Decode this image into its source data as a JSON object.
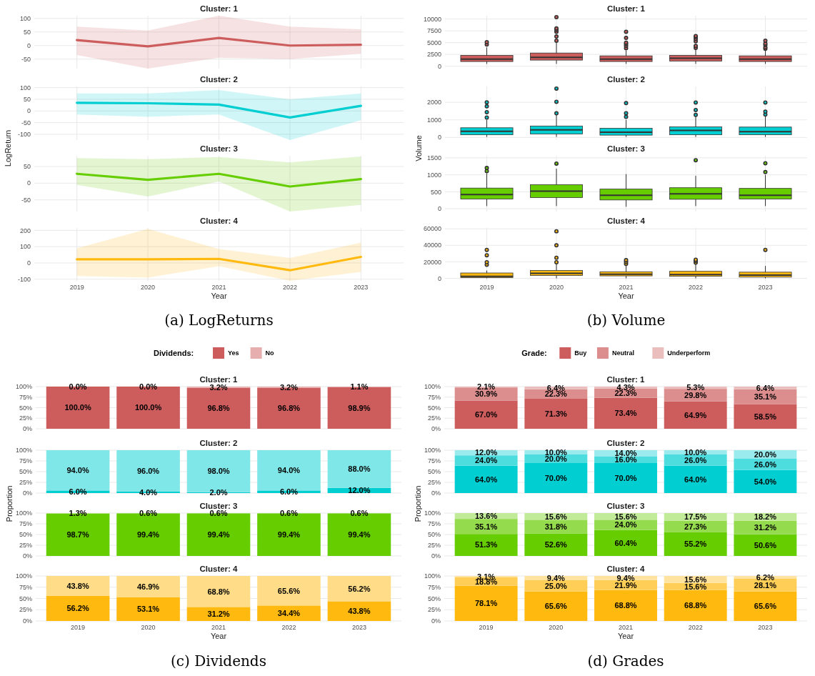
{
  "chart_data": [
    {
      "type": "line",
      "title": "Cluster: 1",
      "categories": [
        "2019",
        "2020",
        "2021",
        "2022",
        "2023"
      ],
      "series": [
        {
          "color": "#cd5c5c",
          "values": [
            20,
            -3,
            28,
            0,
            3
          ],
          "lower": [
            -35,
            -85,
            -45,
            -50,
            -30
          ],
          "upper": [
            70,
            55,
            110,
            70,
            60
          ]
        }
      ],
      "ylim": [
        -85,
        110
      ],
      "yticks": [
        -50,
        0,
        50,
        100
      ],
      "grid": true,
      "tick_labels": "y"
    },
    {
      "type": "line",
      "title": "Cluster: 2",
      "ylabel": "LogReturn",
      "categories": [
        "2019",
        "2020",
        "2021",
        "2022",
        "2023"
      ],
      "series": [
        {
          "color": "#00ced1",
          "values": [
            35,
            33,
            27,
            -28,
            22
          ],
          "lower": [
            -15,
            -25,
            -15,
            -125,
            -40
          ],
          "upper": [
            75,
            75,
            90,
            50,
            75
          ]
        }
      ],
      "ylim": [
        -125,
        105
      ],
      "yticks": [
        -100,
        -50,
        0,
        50,
        100
      ],
      "grid": true,
      "tick_labels": "y"
    },
    {
      "type": "line",
      "title": "Cluster: 3",
      "categories": [
        "2019",
        "2020",
        "2021",
        "2022",
        "2023"
      ],
      "series": [
        {
          "color": "#66cd00",
          "values": [
            28,
            10,
            28,
            -10,
            12
          ],
          "lower": [
            -5,
            -40,
            5,
            -85,
            -65
          ],
          "upper": [
            75,
            72,
            78,
            62,
            80
          ]
        }
      ],
      "ylim": [
        -85,
        82
      ],
      "yticks": [
        -50,
        0,
        50
      ],
      "grid": true,
      "tick_labels": "y"
    },
    {
      "type": "line",
      "title": "Cluster: 4",
      "xlabel": "Year",
      "categories": [
        "2019",
        "2020",
        "2021",
        "2022",
        "2023"
      ],
      "series": [
        {
          "color": "#ffb90f",
          "values": [
            22,
            22,
            25,
            -45,
            37
          ],
          "lower": [
            -80,
            -90,
            -20,
            -110,
            -55
          ],
          "upper": [
            90,
            210,
            85,
            30,
            125
          ]
        }
      ],
      "ylim": [
        -110,
        215
      ],
      "yticks": [
        -100,
        0,
        100,
        200
      ],
      "grid": true,
      "annotations": [
        "(a) LogReturns"
      ]
    },
    {
      "type": "box",
      "title": "Cluster: 1",
      "categories": [
        "2019",
        "2020",
        "2021",
        "2022",
        "2023"
      ],
      "series": [
        {
          "color": "#cd5c5c",
          "boxes": [
            {
              "low": 500,
              "q1": 1000,
              "median": 1500,
              "q3": 2300,
              "high": 4000,
              "outliers": [
                4600,
                5100
              ]
            },
            {
              "low": 500,
              "q1": 1300,
              "median": 1900,
              "q3": 2800,
              "high": 5000,
              "outliers": [
                5400,
                6300,
                7300,
                7700,
                8000,
                10400
              ]
            },
            {
              "low": 500,
              "q1": 1000,
              "median": 1500,
              "q3": 2200,
              "high": 3300,
              "outliers": [
                3800,
                4300,
                4700,
                5000,
                6000,
                7300
              ]
            },
            {
              "low": 500,
              "q1": 1100,
              "median": 1700,
              "q3": 2300,
              "high": 3500,
              "outliers": [
                3900,
                4300,
                5300,
                5800,
                6200,
                6400
              ]
            },
            {
              "low": 500,
              "q1": 1000,
              "median": 1500,
              "q3": 2200,
              "high": 3300,
              "outliers": [
                3700,
                4000,
                4500,
                4800,
                5400
              ]
            }
          ]
        }
      ],
      "ylim": [
        -500,
        10700
      ],
      "yticks": [
        0,
        2500,
        5000,
        7500,
        10000
      ],
      "grid": true,
      "tick_labels": "y"
    },
    {
      "type": "box",
      "title": "Cluster: 2",
      "ylabel": "Volume",
      "categories": [
        "2019",
        "2020",
        "2021",
        "2022",
        "2023"
      ],
      "series": [
        {
          "color": "#00ced1",
          "boxes": [
            {
              "low": 30,
              "q1": 150,
              "median": 350,
              "q3": 550,
              "high": 1000,
              "outliers": [
                1130,
                1440,
                1770,
                2000
              ]
            },
            {
              "low": 30,
              "q1": 200,
              "median": 430,
              "q3": 650,
              "high": 1300,
              "outliers": [
                1370,
                2030,
                2780
              ]
            },
            {
              "low": 30,
              "q1": 130,
              "median": 300,
              "q3": 520,
              "high": 1000,
              "outliers": [
                1170,
                1380,
                1950
              ]
            },
            {
              "low": 30,
              "q1": 150,
              "median": 400,
              "q3": 600,
              "high": 1200,
              "outliers": [
                1280,
                1560,
                1990
              ]
            },
            {
              "low": 30,
              "q1": 150,
              "median": 330,
              "q3": 590,
              "high": 1200,
              "outliers": [
                1300,
                1470,
                1990
              ]
            }
          ]
        }
      ],
      "ylim": [
        -150,
        2900
      ],
      "yticks": [
        0,
        1000,
        2000
      ],
      "grid": true,
      "tick_labels": "y"
    },
    {
      "type": "box",
      "title": "Cluster: 3",
      "categories": [
        "2019",
        "2020",
        "2021",
        "2022",
        "2023"
      ],
      "series": [
        {
          "color": "#66cd00",
          "boxes": [
            {
              "low": 80,
              "q1": 290,
              "median": 420,
              "q3": 610,
              "high": 1040,
              "outliers": [
                1110,
                1200
              ]
            },
            {
              "low": 80,
              "q1": 330,
              "median": 520,
              "q3": 710,
              "high": 1180,
              "outliers": [
                1330
              ]
            },
            {
              "low": 60,
              "q1": 260,
              "median": 400,
              "q3": 580,
              "high": 1020
            },
            {
              "low": 80,
              "q1": 280,
              "median": 440,
              "q3": 620,
              "high": 970,
              "outliers": [
                1430
              ]
            },
            {
              "low": 80,
              "q1": 290,
              "median": 400,
              "q3": 600,
              "high": 1000,
              "outliers": [
                1080,
                1340
              ]
            }
          ]
        }
      ],
      "ylim": [
        -80,
        1560
      ],
      "yticks": [
        0,
        500,
        1000,
        1500
      ],
      "grid": true,
      "tick_labels": "y"
    },
    {
      "type": "box",
      "title": "Cluster: 4",
      "xlabel": "Year",
      "categories": [
        "2019",
        "2020",
        "2021",
        "2022",
        "2023"
      ],
      "series": [
        {
          "color": "#ffb90f",
          "boxes": [
            {
              "low": 0,
              "q1": 1000,
              "median": 2500,
              "q3": 6500,
              "high": 9500,
              "outliers": [
                16500,
                19500,
                28000,
                34500
              ]
            },
            {
              "low": 0,
              "q1": 3500,
              "median": 6000,
              "q3": 9500,
              "high": 17000,
              "outliers": [
                19500,
                25000,
                40000,
                57000
              ]
            },
            {
              "low": 0,
              "q1": 3000,
              "median": 5000,
              "q3": 8000,
              "high": 16000,
              "outliers": [
                17500,
                20000,
                22000
              ]
            },
            {
              "low": 0,
              "q1": 2500,
              "median": 4500,
              "q3": 8500,
              "high": 17000,
              "outliers": [
                19000,
                21000,
                22500
              ]
            },
            {
              "low": 0,
              "q1": 1500,
              "median": 4000,
              "q3": 7500,
              "high": 15000,
              "outliers": [
                34500
              ]
            }
          ]
        }
      ],
      "ylim": [
        -3000,
        61000
      ],
      "yticks": [
        0,
        20000,
        40000,
        60000
      ],
      "grid": true,
      "annotations": [
        "(b) Volume"
      ]
    },
    {
      "type": "bar",
      "stacked": true,
      "title": "Cluster: 1",
      "legend": "top",
      "legend_title": "Dividends:",
      "categories": [
        "2019",
        "2020",
        "2021",
        "2022",
        "2023"
      ],
      "series": [
        {
          "name": "Yes",
          "color": "#cd5c5c",
          "values": [
            100,
            100,
            96.8,
            96.8,
            98.9
          ],
          "value_labels": [
            "100.0%",
            "100.0%",
            "96.8%",
            "96.8%",
            "98.9%"
          ]
        },
        {
          "name": "No",
          "color": "#e6aeae",
          "values": [
            0,
            0,
            3.2,
            3.2,
            1.1
          ],
          "value_labels": [
            "0.0%",
            "0.0%",
            "3.2%",
            "3.2%",
            "1.1%"
          ]
        }
      ],
      "ylim": [
        0,
        100
      ],
      "yticks": [
        {
          "value": 0,
          "label": "0%"
        },
        {
          "value": 25,
          "label": "25%"
        },
        {
          "value": 50,
          "label": "50%"
        },
        {
          "value": 75,
          "label": "75%"
        },
        {
          "value": 100,
          "label": "100%"
        }
      ],
      "grid": true,
      "tick_labels": "y"
    },
    {
      "type": "bar",
      "stacked": true,
      "title": "Cluster: 2",
      "ylabel": "Proportion",
      "categories": [
        "2019",
        "2020",
        "2021",
        "2022",
        "2023"
      ],
      "series": [
        {
          "color": "#00ced1",
          "values": [
            6,
            4,
            2,
            6,
            12
          ],
          "value_labels": [
            "6.0%",
            "4.0%",
            "2.0%",
            "6.0%",
            "12.0%"
          ]
        },
        {
          "color": "#80e7e8",
          "values": [
            94,
            96,
            98,
            94,
            88
          ],
          "value_labels": [
            "94.0%",
            "96.0%",
            "98.0%",
            "94.0%",
            "88.0%"
          ]
        }
      ],
      "ylim": [
        0,
        100
      ],
      "yticks": [
        {
          "value": 0,
          "label": "0%"
        },
        {
          "value": 25,
          "label": "25%"
        },
        {
          "value": 50,
          "label": "50%"
        },
        {
          "value": 75,
          "label": "75%"
        },
        {
          "value": 100,
          "label": "100%"
        }
      ],
      "grid": true,
      "tick_labels": "y"
    },
    {
      "type": "bar",
      "stacked": true,
      "title": "Cluster: 3",
      "categories": [
        "2019",
        "2020",
        "2021",
        "2022",
        "2023"
      ],
      "series": [
        {
          "color": "#66cd00",
          "values": [
            98.7,
            99.4,
            99.4,
            99.4,
            99.4
          ],
          "value_labels": [
            "98.7%",
            "99.4%",
            "99.4%",
            "99.4%",
            "99.4%"
          ]
        },
        {
          "color": "#b3e680",
          "values": [
            1.3,
            0.6,
            0.6,
            0.6,
            0.6
          ],
          "value_labels": [
            "1.3%",
            "0.6%",
            "0.6%",
            "0.6%",
            "0.6%"
          ]
        }
      ],
      "ylim": [
        0,
        100
      ],
      "yticks": [
        {
          "value": 0,
          "label": "0%"
        },
        {
          "value": 25,
          "label": "25%"
        },
        {
          "value": 50,
          "label": "50%"
        },
        {
          "value": 75,
          "label": "75%"
        },
        {
          "value": 100,
          "label": "100%"
        }
      ],
      "grid": true,
      "tick_labels": "y"
    },
    {
      "type": "bar",
      "stacked": true,
      "title": "Cluster: 4",
      "xlabel": "Year",
      "categories": [
        "2019",
        "2020",
        "2021",
        "2022",
        "2023"
      ],
      "series": [
        {
          "color": "#ffb90f",
          "values": [
            56.2,
            53.1,
            31.2,
            34.4,
            43.8
          ],
          "value_labels": [
            "56.2%",
            "53.1%",
            "31.2%",
            "34.4%",
            "43.8%"
          ]
        },
        {
          "color": "#ffdc87",
          "values": [
            43.8,
            46.9,
            68.8,
            65.6,
            56.2
          ],
          "value_labels": [
            "43.8%",
            "46.9%",
            "68.8%",
            "65.6%",
            "56.2%"
          ]
        }
      ],
      "ylim": [
        0,
        100
      ],
      "yticks": [
        {
          "value": 0,
          "label": "0%"
        },
        {
          "value": 25,
          "label": "25%"
        },
        {
          "value": 50,
          "label": "50%"
        },
        {
          "value": 75,
          "label": "75%"
        },
        {
          "value": 100,
          "label": "100%"
        }
      ],
      "grid": true,
      "annotations": [
        "(c) Dividends"
      ]
    },
    {
      "type": "bar",
      "stacked": true,
      "title": "Cluster: 1",
      "legend": "top",
      "legend_title": "Grade:",
      "categories": [
        "2019",
        "2020",
        "2021",
        "2022",
        "2023"
      ],
      "series": [
        {
          "name": "Buy",
          "color": "#cd5c5c",
          "values": [
            67.0,
            71.3,
            73.4,
            64.9,
            58.5
          ],
          "value_labels": [
            "67.0%",
            "71.3%",
            "73.4%",
            "64.9%",
            "58.5%"
          ]
        },
        {
          "name": "Neutral",
          "color": "#dc8d8d",
          "values": [
            30.9,
            22.3,
            22.3,
            29.8,
            35.1
          ],
          "value_labels": [
            "30.9%",
            "22.3%",
            "22.3%",
            "29.8%",
            "35.1%"
          ]
        },
        {
          "name": "Underperform",
          "color": "#ebbebe",
          "values": [
            2.1,
            6.4,
            4.3,
            5.3,
            6.4
          ],
          "value_labels": [
            "2.1%",
            "6.4%",
            "4.3%",
            "5.3%",
            "6.4%"
          ]
        }
      ],
      "ylim": [
        0,
        100
      ],
      "yticks": [
        {
          "value": 0,
          "label": "0%"
        },
        {
          "value": 25,
          "label": "25%"
        },
        {
          "value": 50,
          "label": "50%"
        },
        {
          "value": 75,
          "label": "75%"
        },
        {
          "value": 100,
          "label": "100%"
        }
      ],
      "grid": true,
      "tick_labels": "y"
    },
    {
      "type": "bar",
      "stacked": true,
      "title": "Cluster: 2",
      "ylabel": "Proportion",
      "categories": [
        "2019",
        "2020",
        "2021",
        "2022",
        "2023"
      ],
      "series": [
        {
          "color": "#00ced1",
          "values": [
            64,
            70,
            70,
            64,
            54
          ],
          "value_labels": [
            "64.0%",
            "70.0%",
            "70.0%",
            "64.0%",
            "54.0%"
          ]
        },
        {
          "color": "#4ddddf",
          "values": [
            24,
            20,
            16,
            26,
            26
          ],
          "value_labels": [
            "24.0%",
            "20.0%",
            "16.0%",
            "26.0%",
            "26.0%"
          ]
        },
        {
          "color": "#99ebed",
          "values": [
            12,
            10,
            14,
            10,
            20
          ],
          "value_labels": [
            "12.0%",
            "10.0%",
            "14.0%",
            "10.0%",
            "20.0%"
          ]
        }
      ],
      "ylim": [
        0,
        100
      ],
      "yticks": [
        {
          "value": 0,
          "label": "0%"
        },
        {
          "value": 25,
          "label": "25%"
        },
        {
          "value": 50,
          "label": "50%"
        },
        {
          "value": 75,
          "label": "75%"
        },
        {
          "value": 100,
          "label": "100%"
        }
      ],
      "grid": true,
      "tick_labels": "y"
    },
    {
      "type": "bar",
      "stacked": true,
      "title": "Cluster: 3",
      "categories": [
        "2019",
        "2020",
        "2021",
        "2022",
        "2023"
      ],
      "series": [
        {
          "color": "#66cd00",
          "values": [
            51.3,
            52.6,
            60.4,
            55.2,
            50.6
          ],
          "value_labels": [
            "51.3%",
            "52.6%",
            "60.4%",
            "55.2%",
            "50.6%"
          ]
        },
        {
          "color": "#94dc4d",
          "values": [
            35.1,
            31.8,
            24.0,
            27.3,
            31.2
          ],
          "value_labels": [
            "35.1%",
            "31.8%",
            "24.0%",
            "27.3%",
            "31.2%"
          ]
        },
        {
          "color": "#c2eb99",
          "values": [
            13.6,
            15.6,
            15.6,
            17.5,
            18.2
          ],
          "value_labels": [
            "13.6%",
            "15.6%",
            "15.6%",
            "17.5%",
            "18.2%"
          ]
        }
      ],
      "ylim": [
        0,
        100
      ],
      "yticks": [
        {
          "value": 0,
          "label": "0%"
        },
        {
          "value": 25,
          "label": "25%"
        },
        {
          "value": 50,
          "label": "50%"
        },
        {
          "value": 75,
          "label": "75%"
        },
        {
          "value": 100,
          "label": "100%"
        }
      ],
      "grid": true,
      "tick_labels": "y"
    },
    {
      "type": "bar",
      "stacked": true,
      "title": "Cluster: 4",
      "xlabel": "Year",
      "categories": [
        "2019",
        "2020",
        "2021",
        "2022",
        "2023"
      ],
      "series": [
        {
          "color": "#ffb90f",
          "values": [
            78.1,
            65.6,
            68.8,
            68.8,
            65.6
          ],
          "value_labels": [
            "78.1%",
            "65.6%",
            "68.8%",
            "68.8%",
            "65.6%"
          ]
        },
        {
          "color": "#ffce57",
          "values": [
            18.8,
            25.0,
            21.9,
            15.6,
            28.1
          ],
          "value_labels": [
            "18.8%",
            "25.0%",
            "21.9%",
            "15.6%",
            "28.1%"
          ]
        },
        {
          "color": "#ffe39f",
          "values": [
            3.1,
            9.4,
            9.4,
            15.6,
            6.2
          ],
          "value_labels": [
            "3.1%",
            "9.4%",
            "9.4%",
            "15.6%",
            "6.2%"
          ]
        }
      ],
      "ylim": [
        0,
        100
      ],
      "yticks": [
        {
          "value": 0,
          "label": "0%"
        },
        {
          "value": 25,
          "label": "25%"
        },
        {
          "value": 50,
          "label": "50%"
        },
        {
          "value": 75,
          "label": "75%"
        },
        {
          "value": 100,
          "label": "100%"
        }
      ],
      "grid": true,
      "annotations": [
        "(d) Grades"
      ]
    }
  ]
}
